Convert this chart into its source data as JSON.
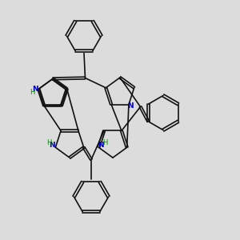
{
  "bg_color": "#dcdcdc",
  "bond_color": "#111111",
  "n_color": "#0000cc",
  "h_color": "#008800",
  "lw": 1.2,
  "figsize": [
    3.0,
    3.0
  ],
  "dpi": 100,
  "xlim": [
    0,
    10
  ],
  "ylim": [
    0,
    10
  ]
}
